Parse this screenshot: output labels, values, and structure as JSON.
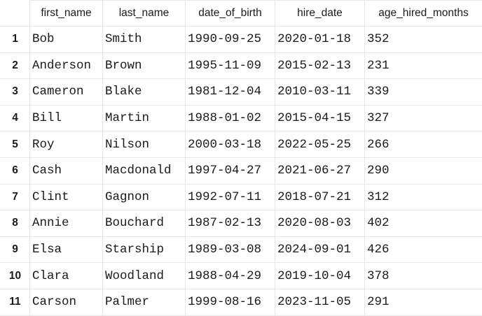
{
  "table": {
    "columns": [
      "first_name",
      "last_name",
      "date_of_birth",
      "hire_date",
      "age_hired_months"
    ],
    "rows": [
      {
        "index": "1",
        "cells": [
          "Bob",
          "Smith",
          "1990-09-25",
          "2020-01-18",
          "352"
        ]
      },
      {
        "index": "2",
        "cells": [
          "Anderson",
          "Brown",
          "1995-11-09",
          "2015-02-13",
          "231"
        ]
      },
      {
        "index": "3",
        "cells": [
          "Cameron",
          "Blake",
          "1981-12-04",
          "2010-03-11",
          "339"
        ]
      },
      {
        "index": "4",
        "cells": [
          "Bill",
          "Martin",
          "1988-01-02",
          "2015-04-15",
          "327"
        ]
      },
      {
        "index": "5",
        "cells": [
          "Roy",
          "Nilson",
          "2000-03-18",
          "2022-05-25",
          "266"
        ]
      },
      {
        "index": "6",
        "cells": [
          "Cash",
          "Macdonald",
          "1997-04-27",
          "2021-06-27",
          "290"
        ]
      },
      {
        "index": "7",
        "cells": [
          "Clint",
          "Gagnon",
          "1992-07-11",
          "2018-07-21",
          "312"
        ]
      },
      {
        "index": "8",
        "cells": [
          "Annie",
          "Bouchard",
          "1987-02-13",
          "2020-08-03",
          "402"
        ]
      },
      {
        "index": "9",
        "cells": [
          "Elsa",
          "Starship",
          "1989-03-08",
          "2024-09-01",
          "426"
        ]
      },
      {
        "index": "10",
        "cells": [
          "Clara",
          "Woodland",
          "1988-04-29",
          "2019-10-04",
          "378"
        ]
      },
      {
        "index": "11",
        "cells": [
          "Carson",
          "Palmer",
          "1999-08-16",
          "2023-11-05",
          "291"
        ]
      }
    ]
  }
}
